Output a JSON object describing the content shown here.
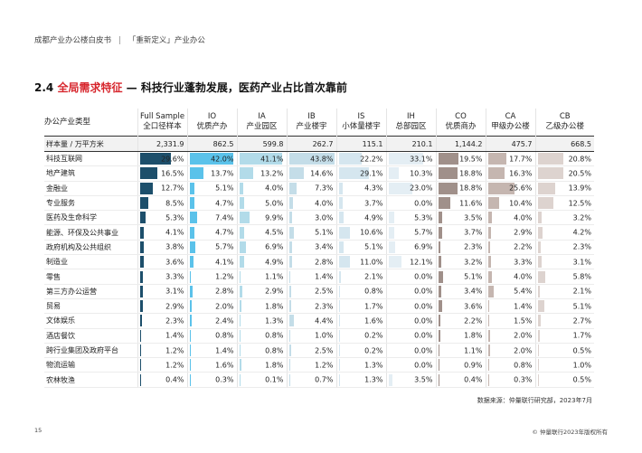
{
  "header": {
    "left": "成都产业办公楼白皮书",
    "divider": "|",
    "right": "「重新定义」产业办公"
  },
  "title": {
    "number": "2.4",
    "highlight": "全局需求特征",
    "rest": " — 科技行业蓬勃发展，医药产业占比首次靠前"
  },
  "table": {
    "first_header": "办公产业类型",
    "columns": [
      {
        "code": "Full Sample",
        "name": "全口径样本",
        "color": "#1d4f6b"
      },
      {
        "code": "IO",
        "name": "优质产办",
        "color": "#5bc2ea"
      },
      {
        "code": "IA",
        "name": "产业园区",
        "color": "#b2dbe9"
      },
      {
        "code": "IB",
        "name": "产业楼宇",
        "color": "#c4dde8"
      },
      {
        "code": "IS",
        "name": "小体量楼宇",
        "color": "#d5e6ef"
      },
      {
        "code": "IH",
        "name": "总部园区",
        "color": "#e4eef4"
      },
      {
        "code": "CO",
        "name": "优质商办",
        "color": "#a0908a"
      },
      {
        "code": "CA",
        "name": "甲级办公楼",
        "color": "#c5b6b0"
      },
      {
        "code": "CB",
        "name": "乙级办公楼",
        "color": "#ddd3cf"
      }
    ],
    "sample_label": "样本量 / 万平方米",
    "sample_values": [
      "2,331.9",
      "862.5",
      "599.8",
      "262.7",
      "115.1",
      "210.1",
      "1,144.2",
      "475.7",
      "668.5"
    ],
    "rows": [
      {
        "label": "科技互联网",
        "values": [
          "29.6%",
          "42.0%",
          "41.1%",
          "43.8%",
          "22.2%",
          "33.1%",
          "19.5%",
          "17.7%",
          "20.8%"
        ]
      },
      {
        "label": "地产建筑",
        "values": [
          "16.5%",
          "13.7%",
          "13.2%",
          "14.6%",
          "29.1%",
          "10.3%",
          "18.8%",
          "16.3%",
          "20.5%"
        ]
      },
      {
        "label": "金融业",
        "values": [
          "12.7%",
          "5.1%",
          "4.0%",
          "7.3%",
          "4.3%",
          "23.0%",
          "18.8%",
          "25.6%",
          "13.9%"
        ]
      },
      {
        "label": "专业服务",
        "values": [
          "8.5%",
          "4.7%",
          "5.0%",
          "4.0%",
          "3.7%",
          "0.0%",
          "11.6%",
          "10.4%",
          "12.5%"
        ]
      },
      {
        "label": "医药及生命科学",
        "values": [
          "5.3%",
          "7.4%",
          "9.9%",
          "3.0%",
          "4.9%",
          "5.3%",
          "3.5%",
          "4.0%",
          "3.2%"
        ]
      },
      {
        "label": "能源、环保及公共事业",
        "values": [
          "4.1%",
          "4.7%",
          "4.5%",
          "5.1%",
          "10.6%",
          "5.7%",
          "3.7%",
          "2.9%",
          "4.2%"
        ]
      },
      {
        "label": "政府机构及公共组织",
        "values": [
          "3.8%",
          "5.7%",
          "6.9%",
          "3.4%",
          "5.1%",
          "6.9%",
          "2.3%",
          "2.2%",
          "2.3%"
        ]
      },
      {
        "label": "制造业",
        "values": [
          "3.6%",
          "4.1%",
          "4.9%",
          "2.8%",
          "11.0%",
          "12.1%",
          "3.2%",
          "3.3%",
          "3.1%"
        ]
      },
      {
        "label": "零售",
        "values": [
          "3.3%",
          "1.2%",
          "1.1%",
          "1.4%",
          "2.1%",
          "0.0%",
          "5.1%",
          "4.0%",
          "5.8%"
        ]
      },
      {
        "label": "第三方办公运营",
        "values": [
          "3.1%",
          "2.8%",
          "2.9%",
          "2.5%",
          "0.8%",
          "0.0%",
          "3.4%",
          "5.4%",
          "2.1%"
        ]
      },
      {
        "label": "贸易",
        "values": [
          "2.9%",
          "2.0%",
          "1.8%",
          "2.3%",
          "1.7%",
          "0.0%",
          "3.6%",
          "1.4%",
          "5.1%"
        ]
      },
      {
        "label": "文体娱乐",
        "values": [
          "2.3%",
          "2.4%",
          "1.3%",
          "4.4%",
          "1.6%",
          "0.0%",
          "2.2%",
          "1.5%",
          "2.7%"
        ]
      },
      {
        "label": "酒店餐饮",
        "values": [
          "1.4%",
          "0.8%",
          "0.8%",
          "1.0%",
          "0.2%",
          "0.0%",
          "1.8%",
          "2.0%",
          "1.7%"
        ]
      },
      {
        "label": "跨行业集团及政府平台",
        "values": [
          "1.2%",
          "1.4%",
          "0.8%",
          "2.5%",
          "0.2%",
          "0.0%",
          "1.1%",
          "2.0%",
          "0.5%"
        ]
      },
      {
        "label": "物流运输",
        "values": [
          "1.2%",
          "1.6%",
          "1.8%",
          "1.2%",
          "1.3%",
          "0.0%",
          "0.9%",
          "0.8%",
          "1.0%"
        ]
      },
      {
        "label": "农林牧渔",
        "values": [
          "0.4%",
          "0.3%",
          "0.1%",
          "0.7%",
          "1.3%",
          "3.5%",
          "0.4%",
          "0.3%",
          "0.5%"
        ]
      }
    ]
  },
  "footnote": "数据来源：仲量联行研究部，2023年7月",
  "page_number": "15",
  "copyright": "© 仲量联行2023年版权所有"
}
